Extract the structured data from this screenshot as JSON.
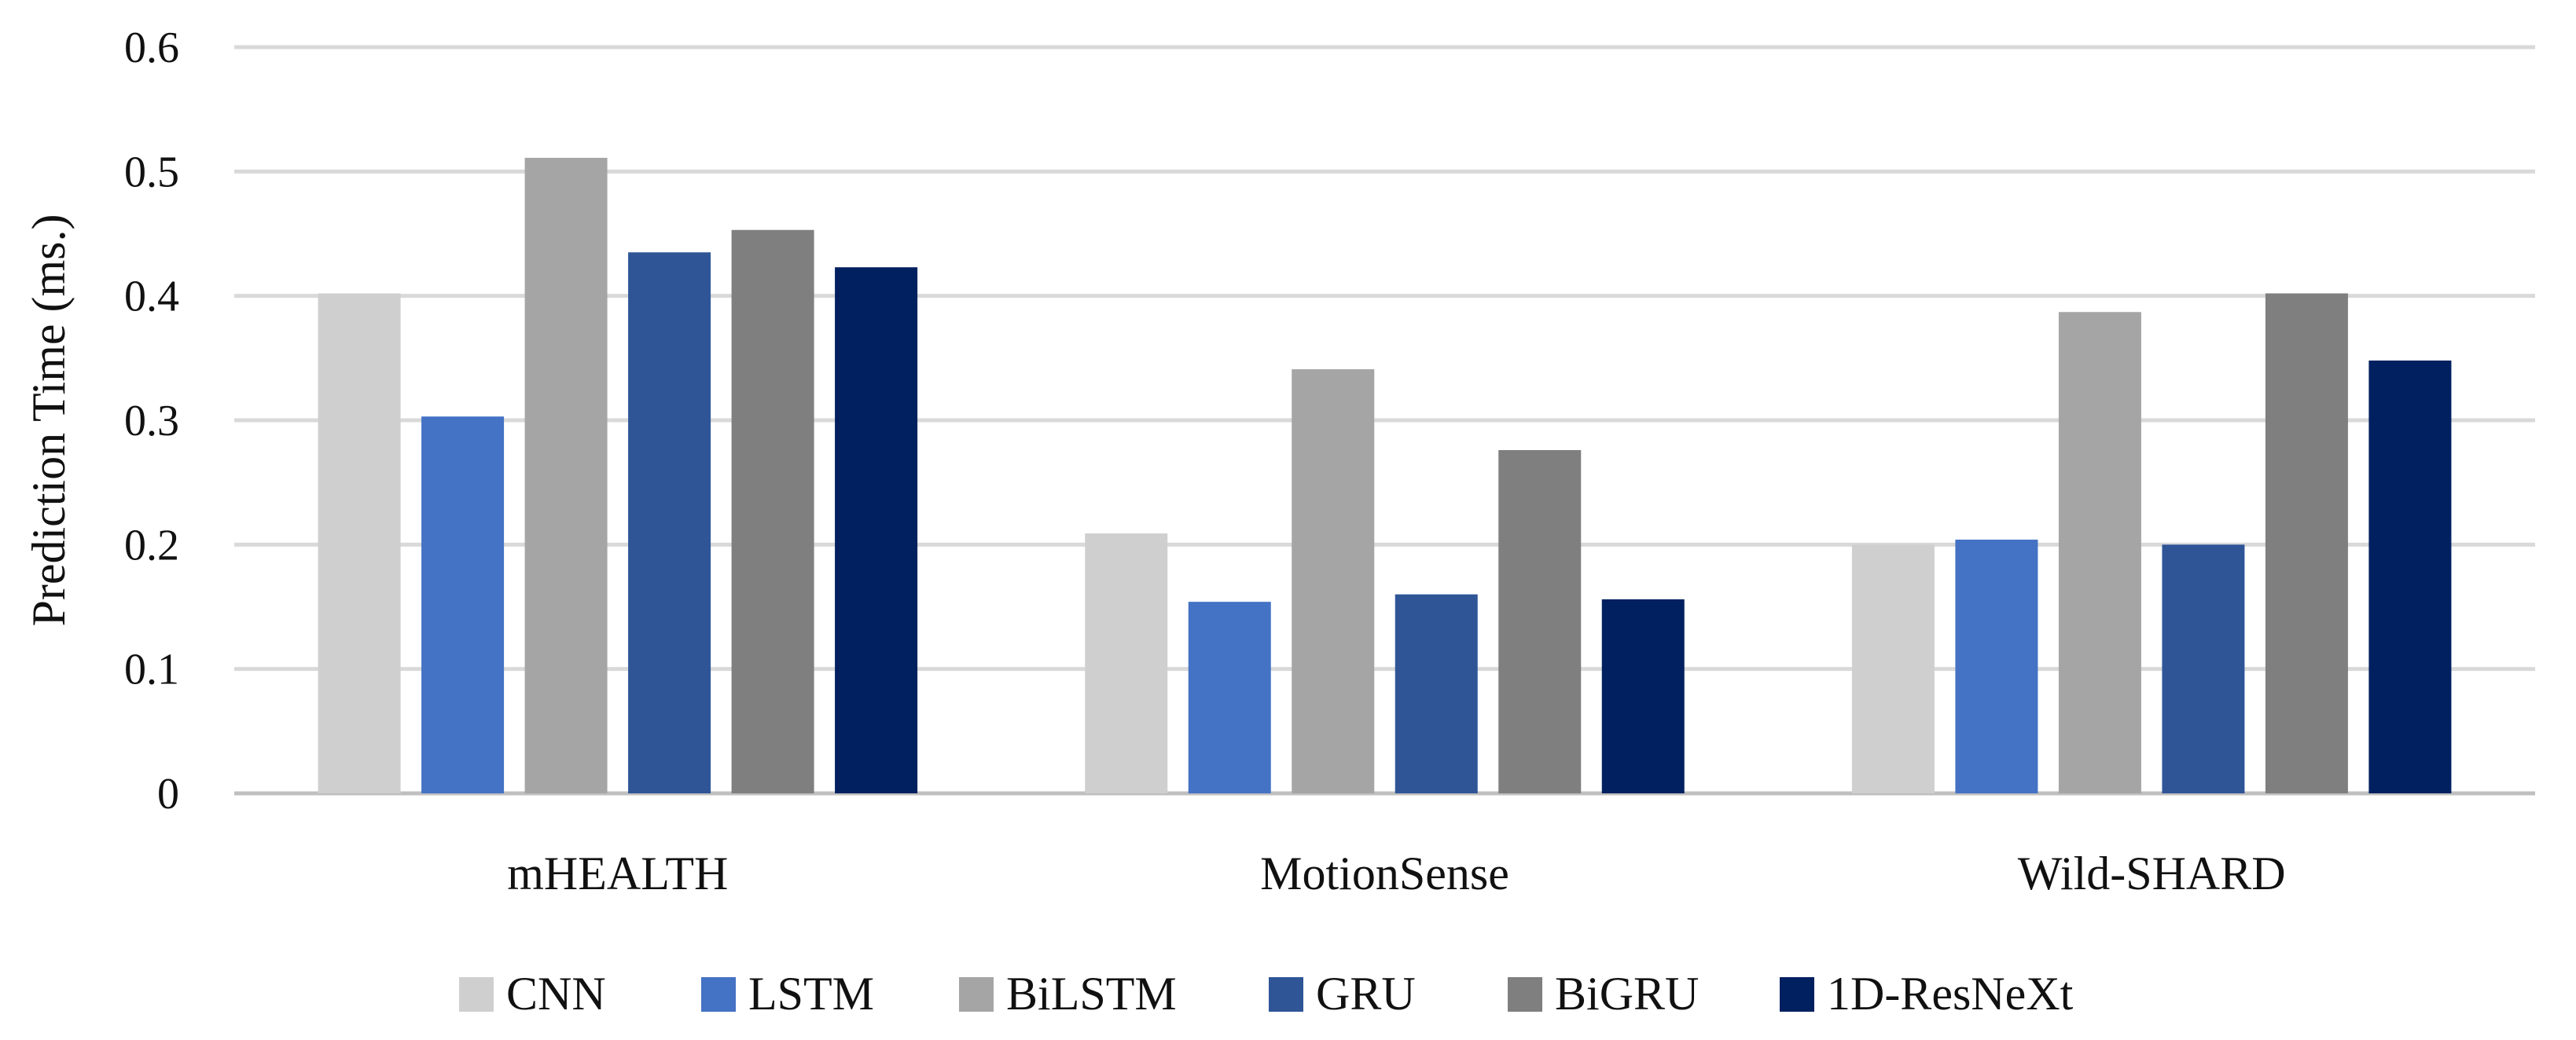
{
  "chart_data": {
    "type": "bar",
    "title": "",
    "xlabel": "",
    "ylabel": "Prediction Time (ms.)",
    "ylim": [
      0,
      0.6
    ],
    "yticks": [
      "0",
      "0.1",
      "0.2",
      "0.3",
      "0.4",
      "0.5",
      "0.6"
    ],
    "grid": true,
    "legend_position": "bottom",
    "categories": [
      "mHEALTH",
      "MotionSense",
      "Wild-SHARD"
    ],
    "series": [
      {
        "name": "CNN",
        "color": "#d0cfd0",
        "values": [
          0.402,
          0.209,
          0.2
        ]
      },
      {
        "name": "LSTM",
        "color": "#4472c4",
        "values": [
          0.303,
          0.154,
          0.204
        ]
      },
      {
        "name": "BiLSTM",
        "color": "#a5a5a5",
        "values": [
          0.511,
          0.341,
          0.387
        ]
      },
      {
        "name": "GRU",
        "color": "#2f5597",
        "values": [
          0.435,
          0.16,
          0.2
        ]
      },
      {
        "name": "BiGRU",
        "color": "#7f7f7f",
        "values": [
          0.453,
          0.276,
          0.402
        ]
      },
      {
        "name": "1D-ResNeXt",
        "color": "#002060",
        "values": [
          0.423,
          0.156,
          0.348
        ]
      }
    ]
  }
}
